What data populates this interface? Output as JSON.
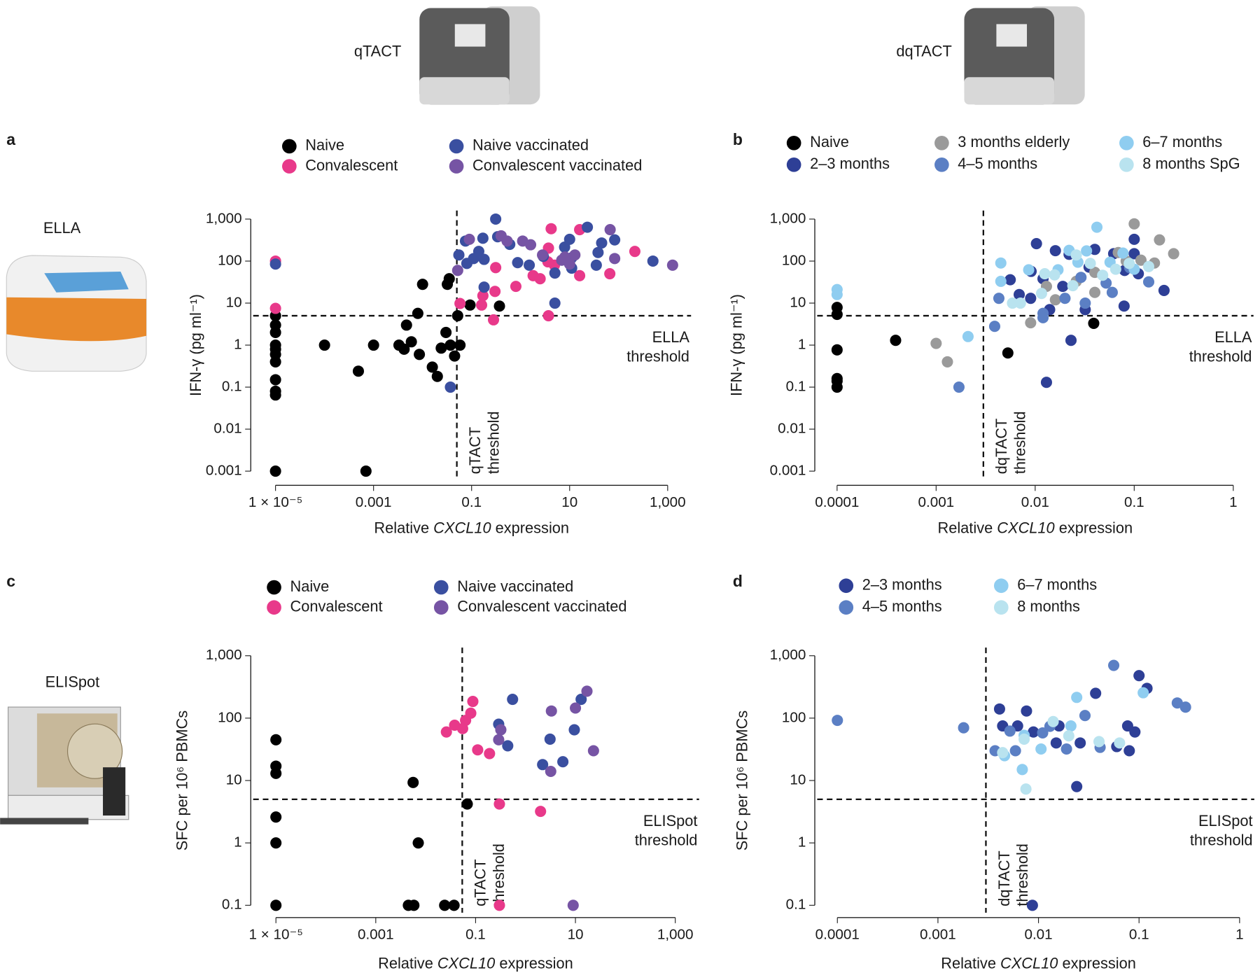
{
  "instruments": {
    "qtact": "qTACT",
    "dqtact": "dqTACT",
    "ella": "ELLA",
    "elispot": "ELISpot"
  },
  "chart_data": [
    {
      "type": "scatter",
      "panel": "a",
      "xscale": "log",
      "yscale": "log",
      "xlabel": [
        "Relative",
        "CXCL10",
        "expression"
      ],
      "ylabel": "IFN-γ (pg ml⁻¹)",
      "xlim": [
        3.5e-06,
        3000
      ],
      "ylim": [
        0.0006,
        1600
      ],
      "xticks": [
        {
          "value": 1e-05,
          "label": "1 × 10⁻⁵"
        },
        0.001,
        0.1,
        10,
        {
          "value": 1000,
          "label": "1,000"
        }
      ],
      "yticks": [
        0.001,
        0.01,
        0.1,
        1,
        10,
        100,
        {
          "value": 1000,
          "label": "1,000"
        }
      ],
      "x_threshold": 0.05,
      "y_threshold": 5,
      "x_threshold_label": [
        "qTACT",
        "threshold"
      ],
      "y_threshold_label": [
        "ELLA",
        "threshold"
      ],
      "series": [
        {
          "name": "Naive",
          "color": "#000000",
          "x": [
            1e-05,
            1e-05,
            1e-05,
            1e-05,
            1e-05,
            1e-05,
            1e-05,
            1e-05,
            1e-05,
            1e-05,
            1e-05,
            0.0001,
            0.00049,
            0.0007,
            0.001,
            0.0033,
            0.0042,
            0.0047,
            0.0059,
            0.008,
            0.0086,
            0.01,
            0.0158,
            0.02,
            0.024,
            0.03,
            0.032,
            0.035,
            0.037,
            0.045,
            0.058,
            0.052,
            0.093,
            0.37
          ],
          "values": [
            0.001,
            0.065,
            0.08,
            0.15,
            0.4,
            0.6,
            0.8,
            1,
            2,
            3,
            5,
            1,
            0.24,
            0.001,
            1,
            1,
            0.8,
            3,
            1.2,
            5.7,
            0.6,
            28,
            0.3,
            0.18,
            0.85,
            2,
            28,
            38,
            1,
            0.55,
            1,
            5,
            9,
            8.5
          ]
        },
        {
          "name": "Convalescent",
          "color": "#e8398a",
          "x": [
            1e-05,
            1e-05,
            0.058,
            0.17,
            0.16,
            0.28,
            0.3,
            0.31,
            0.8,
            1.8,
            2.5,
            3.7,
            4.9,
            3.7,
            4.2,
            16,
            16,
            66,
            214,
            3.6
          ],
          "values": [
            100,
            7.5,
            9.8,
            15,
            9,
            4,
            19,
            70,
            25,
            45,
            38,
            5,
            80,
            204,
            590,
            560,
            45,
            50,
            170,
            96
          ]
        },
        {
          "name": "Naive vaccinated",
          "color": "#3a4fa0",
          "x": [
            1e-05,
            0.037,
            0.055,
            0.075,
            0.08,
            0.11,
            0.14,
            0.18,
            0.18,
            0.31,
            0.34,
            0.17,
            0.6,
            0.87,
            1.5,
            2.9,
            5,
            5,
            7.9,
            10,
            11,
            23,
            35,
            38,
            83,
            500,
            11,
            45
          ],
          "values": [
            85,
            0.1,
            140,
            300,
            88,
            115,
            170,
            24,
            110,
            1000,
            380,
            350,
            250,
            92,
            80,
            130,
            10,
            52,
            215,
            330,
            68,
            640,
            80,
            160,
            320,
            100,
            120,
            270
          ]
        },
        {
          "name": "Convalescent vaccinated",
          "color": "#7654a4",
          "x": [
            0.052,
            0.09,
            0.4,
            0.53,
            1.1,
            1.6,
            2.8,
            6.9,
            8,
            10,
            12.8,
            67,
            83,
            1260
          ],
          "values": [
            60,
            330,
            400,
            300,
            300,
            245,
            140,
            105,
            125,
            85,
            140,
            560,
            115,
            80
          ]
        }
      ]
    },
    {
      "type": "scatter",
      "panel": "b",
      "xscale": "log",
      "yscale": "log",
      "xlabel": [
        "Relative",
        "CXCL10",
        "expression"
      ],
      "ylabel": "IFN-γ (pg ml⁻¹)",
      "xlim": [
        6.3e-05,
        1.6
      ],
      "ylim": [
        0.0006,
        1600
      ],
      "xticks": [
        0.0001,
        0.001,
        0.01,
        0.1,
        1
      ],
      "yticks": [
        0.001,
        0.01,
        0.1,
        1,
        10,
        100,
        {
          "value": 1000,
          "label": "1,000"
        }
      ],
      "x_threshold": 0.003,
      "y_threshold": 5,
      "x_threshold_label": [
        "dqTACT",
        "threshold"
      ],
      "y_threshold_label": [
        "ELLA",
        "threshold"
      ],
      "series": [
        {
          "name": "Naive",
          "color": "#000000",
          "x": [
            0.0001,
            0.0001,
            0.0001,
            0.0001,
            0.0001,
            0.0001,
            0.00039,
            0.0053,
            0.039
          ],
          "values": [
            7.9,
            5.4,
            0.77,
            0.16,
            0.14,
            0.1,
            1.3,
            0.65,
            3.3
          ]
        },
        {
          "name": "2–3 months",
          "color": "#2e3f96",
          "x": [
            0.0103,
            0.012,
            0.009,
            0.013,
            0.014,
            0.0056,
            0.0069,
            0.0091,
            0.016,
            0.019,
            0.022,
            0.023,
            0.035,
            0.032,
            0.062,
            0.079,
            0.1,
            0.1,
            0.11,
            0.2,
            0.08,
            0.04
          ],
          "values": [
            260,
            38,
            13,
            0.13,
            7,
            36,
            16,
            57,
            177,
            25,
            145,
            1.3,
            72,
            7,
            150,
            8.5,
            330,
            150,
            50,
            20,
            60,
            190
          ]
        },
        {
          "name": "3 months elderly",
          "color": "#9a9a9a",
          "x": [
            0.001,
            0.0013,
            0.013,
            0.016,
            0.009,
            0.026,
            0.04,
            0.069,
            0.083,
            0.1,
            0.117,
            0.16,
            0.18,
            0.25,
            0.04
          ],
          "values": [
            1.1,
            0.4,
            25,
            12,
            3.4,
            33,
            54,
            160,
            100,
            770,
            105,
            90,
            320,
            150,
            18
          ]
        },
        {
          "name": "4–5 months",
          "color": "#5b7fc4",
          "x": [
            0.0017,
            0.0039,
            0.0043,
            0.012,
            0.02,
            0.029,
            0.032,
            0.052,
            0.06,
            0.09,
            0.14,
            0.012
          ],
          "values": [
            0.1,
            2.8,
            13,
            5.7,
            13,
            41,
            10,
            30,
            18,
            70,
            32,
            4.5
          ]
        },
        {
          "name": "6–7 months",
          "color": "#8fcdf0",
          "x": [
            0.0001,
            0.0001,
            0.0021,
            0.0045,
            0.0045,
            0.0086,
            0.017,
            0.022,
            0.027,
            0.042,
            0.033,
            0.057,
            0.077,
            0.1
          ],
          "values": [
            21,
            16,
            1.6,
            90,
            33,
            62,
            62,
            180,
            94,
            640,
            175,
            94,
            155,
            64
          ]
        },
        {
          "name": "8 months SpG",
          "color": "#b9e3ef",
          "x": [
            0.0059,
            0.0071,
            0.0116,
            0.0157,
            0.024,
            0.026,
            0.036,
            0.048,
            0.065,
            0.089,
            0.14,
            0.0125
          ],
          "values": [
            10,
            10,
            17,
            47,
            26,
            140,
            88,
            46,
            64,
            88,
            74,
            50
          ]
        }
      ]
    },
    {
      "type": "scatter",
      "panel": "c",
      "xscale": "log",
      "yscale": "log",
      "xlabel": [
        "Relative",
        "CXCL10",
        "expression"
      ],
      "ylabel": "SFC per 10⁶ PBMCs",
      "xlim": [
        3.5e-06,
        3000
      ],
      "ylim": [
        0.076,
        1350
      ],
      "xticks": [
        {
          "value": 1e-05,
          "label": "1 × 10⁻⁵"
        },
        0.001,
        0.1,
        10,
        {
          "value": 1000,
          "label": "1,000"
        }
      ],
      "yticks": [
        0.1,
        1,
        10,
        100,
        {
          "value": 1000,
          "label": "1,000"
        }
      ],
      "x_threshold": 0.054,
      "y_threshold": 5,
      "x_threshold_label": [
        "qTACT",
        "threshold"
      ],
      "y_threshold_label": [
        "ELISpot",
        "threshold"
      ],
      "series": [
        {
          "name": "Naive",
          "color": "#000000",
          "x": [
            1e-05,
            1e-05,
            1e-05,
            1e-05,
            1e-05,
            1e-05,
            0.0056,
            0.0071,
            0.0045,
            0.0058,
            0.024,
            0.037,
            0.068
          ],
          "values": [
            45,
            17,
            13,
            2.6,
            1,
            0.1,
            9.3,
            1,
            0.1,
            0.1,
            0.1,
            0.1,
            4.2
          ]
        },
        {
          "name": "Convalescent",
          "color": "#e8398a",
          "x": [
            0.026,
            0.038,
            0.055,
            0.063,
            0.08,
            0.088,
            0.11,
            0.19,
            0.3,
            0.3,
            2
          ],
          "values": [
            60,
            77,
            68,
            92,
            120,
            185,
            31,
            27,
            0.1,
            4.2,
            3.2
          ]
        },
        {
          "name": "Naive vaccinated",
          "color": "#3a4fa0",
          "x": [
            0.29,
            0.55,
            0.44,
            2.2,
            3.1,
            5.6,
            9.5,
            13
          ],
          "values": [
            80,
            200,
            36,
            18,
            46,
            20,
            65,
            200
          ]
        },
        {
          "name": "Convalescent vaccinated",
          "color": "#7654a4",
          "x": [
            0.32,
            0.29,
            3.3,
            3.2,
            9,
            10,
            17,
            23
          ],
          "values": [
            65,
            45,
            130,
            14,
            0.1,
            145,
            270,
            30
          ]
        }
      ]
    },
    {
      "type": "scatter",
      "panel": "d",
      "xscale": "log",
      "yscale": "log",
      "xlabel": [
        "Relative",
        "CXCL10",
        "expression"
      ],
      "ylabel": "SFC per 10⁶ PBMCs",
      "xlim": [
        6.3e-05,
        1.4
      ],
      "ylim": [
        0.076,
        1350
      ],
      "xticks": [
        0.0001,
        0.001,
        0.01,
        0.1,
        1
      ],
      "yticks": [
        0.1,
        1,
        10,
        100,
        {
          "value": 1000,
          "label": "1,000"
        }
      ],
      "x_threshold": 0.003,
      "y_threshold": 5,
      "x_threshold_label": [
        "dqTACT",
        "threshold"
      ],
      "y_threshold_label": [
        "ELISpot",
        "threshold"
      ],
      "series": [
        {
          "name": "2–3 months",
          "color": "#2e3f96",
          "x": [
            0.0041,
            0.0044,
            0.0062,
            0.0076,
            0.0087,
            0.0089,
            0.015,
            0.016,
            0.024,
            0.026,
            0.037,
            0.077,
            0.12,
            0.091,
            0.1,
            0.08,
            0.06
          ],
          "values": [
            140,
            75,
            75,
            130,
            0.1,
            60,
            40,
            75,
            8,
            40,
            250,
            75,
            300,
            60,
            480,
            30,
            35
          ]
        },
        {
          "name": "4–5 months",
          "color": "#5b7fc4",
          "x": [
            0.0001,
            0.0018,
            0.0037,
            0.0059,
            0.0052,
            0.011,
            0.013,
            0.019,
            0.041,
            0.056,
            0.24,
            0.29,
            0.029
          ],
          "values": [
            92,
            70,
            30,
            30,
            62,
            58,
            74,
            32,
            34,
            700,
            175,
            150,
            110
          ]
        },
        {
          "name": "6–7 months",
          "color": "#8fcdf0",
          "x": [
            0.0046,
            0.0072,
            0.0069,
            0.021,
            0.024,
            0.11,
            0.0106
          ],
          "values": [
            25,
            53,
            15,
            75,
            215,
            255,
            32
          ]
        },
        {
          "name": "8 months",
          "color": "#b9e3ef",
          "x": [
            0.0044,
            0.0072,
            0.0075,
            0.014,
            0.02,
            0.04,
            0.064
          ],
          "values": [
            28,
            46,
            7.3,
            88,
            52,
            42,
            40
          ]
        }
      ]
    }
  ]
}
